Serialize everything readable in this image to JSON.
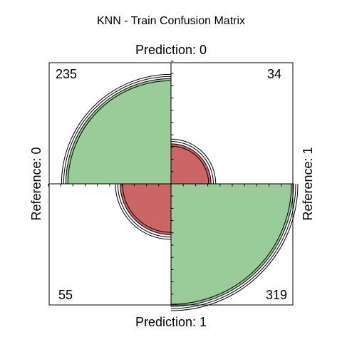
{
  "chart_data": {
    "type": "fourfold",
    "title": "KNN - Train Confusion Matrix",
    "top_label": "Prediction: 0",
    "bottom_label": "Prediction: 1",
    "left_label": "Reference: 0",
    "right_label": "Reference: 1",
    "cells": [
      {
        "id": "ref0-pred0",
        "position": "top-left",
        "value": 235,
        "label": "235",
        "color": "#99cc99"
      },
      {
        "id": "ref1-pred0",
        "position": "top-right",
        "value": 34,
        "label": "34",
        "color": "#cc6666"
      },
      {
        "id": "ref0-pred1",
        "position": "bottom-left",
        "value": 55,
        "label": "55",
        "color": "#cc6666"
      },
      {
        "id": "ref1-pred1",
        "position": "bottom-right",
        "value": 319,
        "label": "319",
        "color": "#99cc99"
      }
    ],
    "confidence_rings": true,
    "grid": false
  }
}
